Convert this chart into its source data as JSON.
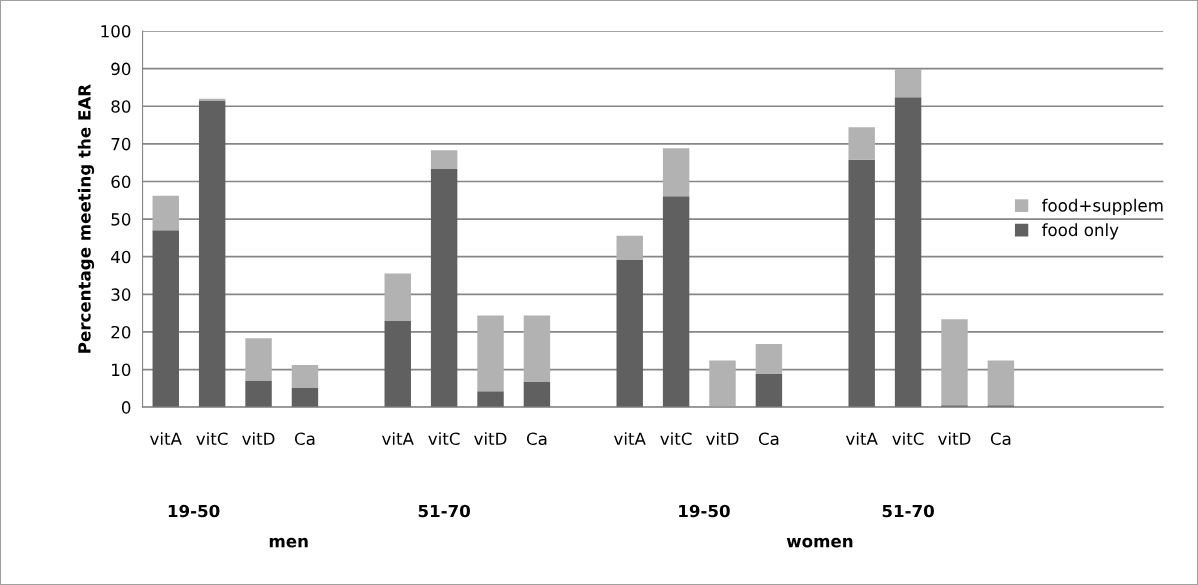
{
  "chart_data": {
    "type": "bar",
    "stacked": true,
    "ylabel": "Percentage meeting the EAR",
    "categories": [
      "vitA",
      "vitC",
      "vitD",
      "Ca",
      null,
      "vitA",
      "vitC",
      "vitD",
      "Ca",
      null,
      "vitA",
      "vitC",
      "vitD",
      "Ca",
      null,
      "vitA",
      "vitC",
      "vitD",
      "Ca",
      null,
      null,
      null
    ],
    "series": [
      {
        "name": "food only",
        "color": "#606060",
        "values": [
          47.0,
          81.5,
          7.1,
          5.1,
          null,
          22.9,
          63.3,
          4.2,
          6.7,
          null,
          39.1,
          56.1,
          0,
          8.8,
          null,
          65.8,
          82.4,
          0.5,
          0.5,
          null,
          null,
          null
        ]
      },
      {
        "name": "food+supplem",
        "color": "#b2b2b2",
        "values": [
          9.2,
          0.5,
          11.2,
          6.1,
          null,
          12.6,
          5.0,
          20.2,
          17.7,
          null,
          6.5,
          12.7,
          12.4,
          8.0,
          null,
          8.6,
          7.5,
          22.9,
          11.9,
          null,
          null,
          null
        ]
      }
    ],
    "annotations": [
      "19-50",
      "51-70",
      "19-50",
      "51-70",
      "men",
      "women"
    ],
    "ylim": [
      0,
      100
    ],
    "yticks": [
      0,
      10,
      20,
      30,
      40,
      50,
      60,
      70,
      80,
      90,
      100
    ],
    "grid": "y",
    "legend": "right"
  }
}
